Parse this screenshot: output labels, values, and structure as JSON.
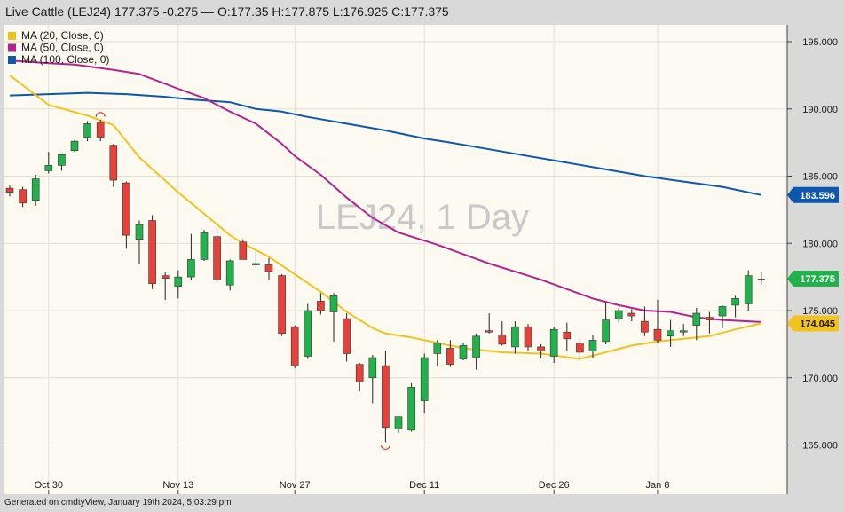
{
  "header": {
    "symbol": "Live Cattle (LEJ24)",
    "last": "177.375",
    "change": "-0.275",
    "sep": "—",
    "ohlc": "O:177.35 H:177.875 L:176.925 C:177.375"
  },
  "footer": {
    "text": "Generated on cmdtyView, January 19th 2024, 5:03:29 pm"
  },
  "colors": {
    "background": "#fcf9f0",
    "up": "#22b14c",
    "down": "#e8403a",
    "ma20": "#f2c21e",
    "ma50": "#b5238f",
    "ma100": "#0d57b0"
  },
  "chart_data": {
    "type": "candlestick",
    "watermark": "LEJ24, 1 Day",
    "y_ticks": [
      "195.000",
      "190.000",
      "185.000",
      "180.000",
      "175.000",
      "170.000",
      "165.000"
    ],
    "x_ticks": [
      {
        "label": "Oct 30",
        "index": 3
      },
      {
        "label": "Nov 13",
        "index": 13
      },
      {
        "label": "Nov 27",
        "index": 22
      },
      {
        "label": "Dec 11",
        "index": 32
      },
      {
        "label": "Dec 26",
        "index": 42
      },
      {
        "label": "Jan 8",
        "index": 50
      }
    ],
    "legend": [
      {
        "label": "MA (20, Close, 0)",
        "color": "#f2c21e"
      },
      {
        "label": "MA (50, Close, 0)",
        "color": "#b5238f"
      },
      {
        "label": "MA (100, Close, 0)",
        "color": "#0d57b0"
      }
    ],
    "price_labels": [
      {
        "value": "183.596",
        "price": 183.596,
        "color": "#0d57b0",
        "text_color": "#ffffff"
      },
      {
        "value": "177.375",
        "price": 177.375,
        "color": "#22b14c",
        "text_color": "#ffffff"
      },
      {
        "value": "174.045",
        "price": 174.045,
        "color": "#f2c21e",
        "text_color": "#1a1a1a"
      }
    ],
    "candles": [
      {
        "o": 184.1,
        "h": 184.3,
        "l": 183.5,
        "c": 183.8
      },
      {
        "o": 184.0,
        "h": 184.2,
        "l": 182.7,
        "c": 183.0
      },
      {
        "o": 183.2,
        "h": 185.1,
        "l": 182.8,
        "c": 184.8
      },
      {
        "o": 185.4,
        "h": 186.8,
        "l": 185.2,
        "c": 185.8
      },
      {
        "o": 185.8,
        "h": 186.7,
        "l": 185.4,
        "c": 186.6
      },
      {
        "o": 186.9,
        "h": 187.7,
        "l": 186.8,
        "c": 187.6
      },
      {
        "o": 187.9,
        "h": 189.1,
        "l": 187.6,
        "c": 188.9
      },
      {
        "o": 189.0,
        "h": 189.2,
        "l": 187.6,
        "c": 187.9
      },
      {
        "o": 187.3,
        "h": 187.4,
        "l": 184.2,
        "c": 184.7
      },
      {
        "o": 184.5,
        "h": 184.6,
        "l": 179.6,
        "c": 180.6
      },
      {
        "o": 180.3,
        "h": 181.7,
        "l": 178.5,
        "c": 181.4
      },
      {
        "o": 181.7,
        "h": 182.1,
        "l": 176.6,
        "c": 177.0
      },
      {
        "o": 177.6,
        "h": 177.9,
        "l": 175.8,
        "c": 177.4
      },
      {
        "o": 176.8,
        "h": 178.0,
        "l": 175.9,
        "c": 177.5
      },
      {
        "o": 177.5,
        "h": 180.7,
        "l": 177.3,
        "c": 178.8
      },
      {
        "o": 178.8,
        "h": 181.0,
        "l": 178.7,
        "c": 180.8
      },
      {
        "o": 180.5,
        "h": 181.0,
        "l": 177.1,
        "c": 177.3
      },
      {
        "o": 176.9,
        "h": 178.8,
        "l": 176.5,
        "c": 178.7
      },
      {
        "o": 180.1,
        "h": 180.3,
        "l": 178.8,
        "c": 178.8
      },
      {
        "o": 178.5,
        "h": 179.4,
        "l": 178.2,
        "c": 178.5
      },
      {
        "o": 178.4,
        "h": 178.9,
        "l": 177.3,
        "c": 177.9
      },
      {
        "o": 177.6,
        "h": 177.7,
        "l": 173.1,
        "c": 173.3
      },
      {
        "o": 173.8,
        "h": 173.9,
        "l": 170.7,
        "c": 170.9
      },
      {
        "o": 171.6,
        "h": 175.5,
        "l": 171.4,
        "c": 175.0
      },
      {
        "o": 175.7,
        "h": 176.3,
        "l": 174.7,
        "c": 175.0
      },
      {
        "o": 174.9,
        "h": 176.3,
        "l": 172.7,
        "c": 176.1
      },
      {
        "o": 174.4,
        "h": 174.8,
        "l": 171.2,
        "c": 171.8
      },
      {
        "o": 171.0,
        "h": 171.1,
        "l": 169.0,
        "c": 169.7
      },
      {
        "o": 170.0,
        "h": 171.7,
        "l": 168.1,
        "c": 171.5
      },
      {
        "o": 170.9,
        "h": 172.0,
        "l": 165.2,
        "c": 166.3
      },
      {
        "o": 166.2,
        "h": 167.1,
        "l": 165.9,
        "c": 167.1
      },
      {
        "o": 166.1,
        "h": 169.6,
        "l": 166.0,
        "c": 169.3
      },
      {
        "o": 168.3,
        "h": 171.8,
        "l": 167.4,
        "c": 171.5
      },
      {
        "o": 171.8,
        "h": 172.8,
        "l": 170.9,
        "c": 172.6
      },
      {
        "o": 172.2,
        "h": 172.8,
        "l": 170.8,
        "c": 171.0
      },
      {
        "o": 171.4,
        "h": 172.6,
        "l": 171.3,
        "c": 172.4
      },
      {
        "o": 171.5,
        "h": 173.3,
        "l": 170.6,
        "c": 173.1
      },
      {
        "o": 173.5,
        "h": 174.8,
        "l": 173.3,
        "c": 173.4
      },
      {
        "o": 173.2,
        "h": 174.2,
        "l": 172.4,
        "c": 172.5
      },
      {
        "o": 172.3,
        "h": 174.2,
        "l": 171.8,
        "c": 173.8
      },
      {
        "o": 173.8,
        "h": 174.0,
        "l": 172.0,
        "c": 172.3
      },
      {
        "o": 172.3,
        "h": 172.5,
        "l": 171.5,
        "c": 172.0
      },
      {
        "o": 171.6,
        "h": 173.8,
        "l": 171.1,
        "c": 173.6
      },
      {
        "o": 173.4,
        "h": 174.1,
        "l": 172.0,
        "c": 172.9
      },
      {
        "o": 172.6,
        "h": 172.9,
        "l": 171.3,
        "c": 171.9
      },
      {
        "o": 172.0,
        "h": 173.2,
        "l": 171.5,
        "c": 172.8
      },
      {
        "o": 172.7,
        "h": 175.6,
        "l": 172.5,
        "c": 174.3
      },
      {
        "o": 174.4,
        "h": 175.2,
        "l": 174.1,
        "c": 175.0
      },
      {
        "o": 174.8,
        "h": 175.1,
        "l": 174.2,
        "c": 174.6
      },
      {
        "o": 174.2,
        "h": 175.3,
        "l": 173.1,
        "c": 173.4
      },
      {
        "o": 173.6,
        "h": 175.8,
        "l": 172.6,
        "c": 172.8
      },
      {
        "o": 173.1,
        "h": 174.3,
        "l": 172.3,
        "c": 173.5
      },
      {
        "o": 173.4,
        "h": 174.0,
        "l": 173.1,
        "c": 173.5
      },
      {
        "o": 173.9,
        "h": 175.2,
        "l": 172.8,
        "c": 174.8
      },
      {
        "o": 174.5,
        "h": 174.9,
        "l": 173.3,
        "c": 174.3
      },
      {
        "o": 174.6,
        "h": 175.4,
        "l": 173.7,
        "c": 175.3
      },
      {
        "o": 175.4,
        "h": 176.1,
        "l": 174.5,
        "c": 175.9
      },
      {
        "o": 175.5,
        "h": 178.0,
        "l": 175.0,
        "c": 177.6
      },
      {
        "o": 177.35,
        "h": 177.875,
        "l": 176.925,
        "c": 177.375
      }
    ],
    "ma20": [
      [
        0,
        192.5
      ],
      [
        3,
        190.3
      ],
      [
        6,
        189.5
      ],
      [
        8,
        188.8
      ],
      [
        10,
        186.4
      ],
      [
        13,
        183.8
      ],
      [
        15,
        182.2
      ],
      [
        17,
        180.6
      ],
      [
        18,
        180.0
      ],
      [
        20,
        179.0
      ],
      [
        22,
        177.7
      ],
      [
        24,
        176.4
      ],
      [
        26,
        174.9
      ],
      [
        28,
        173.7
      ],
      [
        29,
        173.3
      ],
      [
        31,
        173.0
      ],
      [
        33,
        172.6
      ],
      [
        35,
        172.2
      ],
      [
        38,
        171.9
      ],
      [
        41,
        171.8
      ],
      [
        44,
        171.4
      ],
      [
        46,
        171.9
      ],
      [
        48,
        172.4
      ],
      [
        50,
        172.7
      ],
      [
        52,
        172.9
      ],
      [
        54,
        173.1
      ],
      [
        56,
        173.6
      ],
      [
        58,
        174.045
      ]
    ],
    "ma50": [
      [
        0,
        193.6
      ],
      [
        3,
        193.4
      ],
      [
        5,
        193.3
      ],
      [
        8,
        192.9
      ],
      [
        10,
        192.6
      ],
      [
        13,
        191.5
      ],
      [
        15,
        190.8
      ],
      [
        17,
        189.8
      ],
      [
        19,
        188.9
      ],
      [
        21,
        187.4
      ],
      [
        22,
        186.5
      ],
      [
        24,
        185.1
      ],
      [
        26,
        183.4
      ],
      [
        28,
        181.9
      ],
      [
        30,
        180.8
      ],
      [
        33,
        179.9
      ],
      [
        35,
        179.2
      ],
      [
        37,
        178.5
      ],
      [
        39,
        177.9
      ],
      [
        41,
        177.3
      ],
      [
        43,
        176.6
      ],
      [
        45,
        175.9
      ],
      [
        47,
        175.4
      ],
      [
        49,
        175.0
      ],
      [
        51,
        174.9
      ],
      [
        53,
        174.5
      ],
      [
        55,
        174.3
      ],
      [
        57,
        174.2
      ],
      [
        58,
        174.15
      ]
    ],
    "ma100": [
      [
        0,
        191.0
      ],
      [
        3,
        191.1
      ],
      [
        6,
        191.2
      ],
      [
        9,
        191.1
      ],
      [
        12,
        190.9
      ],
      [
        14,
        190.7
      ],
      [
        17,
        190.5
      ],
      [
        19,
        190.0
      ],
      [
        21,
        189.8
      ],
      [
        23,
        189.4
      ],
      [
        26,
        188.9
      ],
      [
        29,
        188.4
      ],
      [
        32,
        187.8
      ],
      [
        34,
        187.5
      ],
      [
        37,
        187.0
      ],
      [
        40,
        186.5
      ],
      [
        43,
        186.0
      ],
      [
        46,
        185.5
      ],
      [
        49,
        185.0
      ],
      [
        52,
        184.6
      ],
      [
        55,
        184.2
      ],
      [
        58,
        183.596
      ]
    ],
    "markers": [
      {
        "index": 7,
        "type": "high"
      },
      {
        "index": 29,
        "type": "low"
      }
    ]
  }
}
